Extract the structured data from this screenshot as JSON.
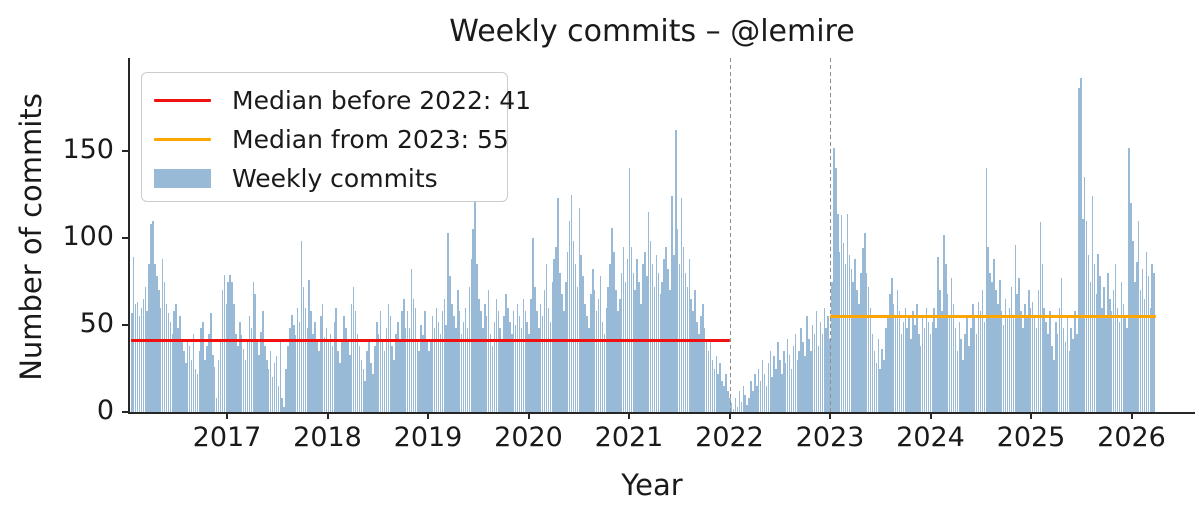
{
  "title": "Weekly commits – @lemire",
  "axes": {
    "xlabel": "Year",
    "ylabel": "Number of commits",
    "x_ticks": [
      2017,
      2018,
      2019,
      2020,
      2021,
      2022,
      2023,
      2024,
      2025,
      2026
    ],
    "y_ticks": [
      0,
      50,
      100,
      150
    ]
  },
  "legend": {
    "items": [
      {
        "swatch": "line",
        "color": "#f01010",
        "label": "Median before 2022: 41"
      },
      {
        "swatch": "line",
        "color": "#ffa500",
        "label": "Median from 2023: 55"
      },
      {
        "swatch": "patch",
        "color": "rgba(70,130,180,0.55)",
        "label": "Weekly commits"
      }
    ]
  },
  "colors": {
    "bar_fill": "rgba(70,130,180,0.55)",
    "median_before": "#f01010",
    "median_after": "#ffa500",
    "vline": "#8f8f8f",
    "spine": "#262626"
  },
  "chart_data": {
    "type": "bar",
    "title": "Weekly commits – @lemire",
    "xlabel": "Year",
    "ylabel": "Number of commits",
    "x_unit": "weeks",
    "x_start_year": 2016.045,
    "weeks_per_year": 52.1,
    "xlim": [
      2016.0,
      2026.6
    ],
    "ylim": [
      0,
      203
    ],
    "x_ticks": [
      2017,
      2018,
      2019,
      2020,
      2021,
      2022,
      2023,
      2024,
      2025,
      2026
    ],
    "y_ticks": [
      0,
      50,
      100,
      150
    ],
    "grid": false,
    "legend_position": "upper left",
    "bar_color": "steelblue",
    "bar_alpha": 0.55,
    "median_lines": [
      {
        "label": "Median before 2022: 41",
        "value": 41,
        "color": "#f01010",
        "x_from": 2016.045,
        "x_to": 2022.0
      },
      {
        "label": "Median from 2023: 55",
        "value": 55,
        "color": "#ffa500",
        "x_from": 2023.0,
        "x_to": 2026.24
      }
    ],
    "vlines": [
      {
        "x": 2022.0
      },
      {
        "x": 2023.0
      }
    ],
    "values": [
      57,
      89,
      62,
      63,
      55,
      60,
      65,
      72,
      58,
      85,
      108,
      110,
      85,
      78,
      70,
      60,
      88,
      75,
      62,
      57,
      52,
      45,
      58,
      62,
      48,
      55,
      40,
      35,
      28,
      42,
      38,
      30,
      45,
      25,
      22,
      35,
      48,
      52,
      30,
      38,
      45,
      57,
      33,
      26,
      8,
      30,
      42,
      70,
      79,
      62,
      75,
      79,
      75,
      62,
      45,
      38,
      52,
      44,
      36,
      30,
      42,
      55,
      48,
      75,
      68,
      40,
      33,
      46,
      58,
      38,
      30,
      25,
      35,
      20,
      28,
      32,
      15,
      40,
      8,
      3,
      25,
      38,
      48,
      56,
      50,
      44,
      60,
      52,
      98,
      72,
      60,
      48,
      76,
      58,
      45,
      52,
      40,
      35,
      55,
      62,
      43,
      48,
      40,
      45,
      38,
      52,
      60,
      35,
      28,
      42,
      55,
      48,
      40,
      33,
      62,
      72,
      58,
      45,
      38,
      30,
      25,
      18,
      35,
      42,
      28,
      22,
      38,
      52,
      45,
      58,
      40,
      35,
      48,
      62,
      55,
      38,
      30,
      45,
      52,
      40,
      58,
      65,
      48,
      58,
      48,
      82,
      65,
      60,
      42,
      35,
      50,
      44,
      58,
      40,
      35,
      42,
      55,
      48,
      60,
      52,
      45,
      58,
      65,
      50,
      103,
      78,
      62,
      55,
      48,
      70,
      58,
      45,
      52,
      60,
      48,
      72,
      88,
      105,
      121,
      85,
      65,
      58,
      48,
      62,
      55,
      70,
      45,
      38,
      52,
      65,
      58,
      48,
      42,
      55,
      68,
      60,
      52,
      45,
      58,
      50,
      62,
      55,
      48,
      65,
      58,
      52,
      45,
      65,
      100,
      72,
      58,
      48,
      62,
      55,
      70,
      85,
      60,
      52,
      75,
      88,
      95,
      123,
      80,
      68,
      58,
      75,
      92,
      110,
      125,
      98,
      85,
      72,
      117,
      90,
      78,
      62,
      55,
      48,
      68,
      82,
      70,
      58,
      65,
      78,
      52,
      45,
      60,
      72,
      85,
      106,
      92,
      70,
      58,
      65,
      80,
      95,
      75,
      88,
      140,
      95,
      80,
      70,
      88,
      75,
      62,
      85,
      92,
      78,
      115,
      98,
      85,
      72,
      90,
      80,
      68,
      75,
      88,
      95,
      82,
      70,
      124,
      90,
      162,
      105,
      85,
      123,
      95,
      80,
      72,
      88,
      65,
      58,
      70,
      52,
      45,
      55,
      62,
      48,
      40,
      35,
      42,
      30,
      25,
      32,
      22,
      28,
      18,
      15,
      22,
      12,
      8,
      5,
      2,
      8,
      3,
      12,
      6,
      15,
      10,
      4,
      8,
      18,
      12,
      22,
      15,
      25,
      18,
      30,
      22,
      15,
      28,
      35,
      20,
      32,
      25,
      40,
      30,
      22,
      35,
      28,
      42,
      33,
      25,
      38,
      45,
      30,
      35,
      48,
      40,
      32,
      55,
      42,
      35,
      50,
      45,
      58,
      38,
      52,
      45,
      60,
      48,
      55,
      42,
      75,
      152,
      140,
      114,
      92,
      113,
      97,
      85,
      114,
      90,
      82,
      75,
      88,
      70,
      62,
      80,
      94,
      103,
      80,
      72,
      60,
      45,
      35,
      28,
      42,
      25,
      36,
      30,
      48,
      55,
      68,
      77,
      62,
      55,
      70,
      58,
      45,
      52,
      60,
      48,
      55,
      42,
      58,
      50,
      62,
      45,
      38,
      55,
      48,
      60,
      52,
      45,
      52,
      60,
      48,
      89,
      70,
      58,
      102,
      85,
      68,
      55,
      77,
      62,
      48,
      35,
      52,
      42,
      30,
      45,
      55,
      38,
      48,
      62,
      55,
      45,
      63,
      58,
      70,
      52,
      140,
      95,
      80,
      75,
      88,
      70,
      62,
      76,
      58,
      50,
      65,
      55,
      60,
      72,
      55,
      96,
      68,
      77,
      58,
      48,
      62,
      55,
      70,
      60,
      63,
      55,
      48,
      70,
      109,
      85,
      60,
      52,
      45,
      58,
      38,
      30,
      52,
      45,
      60,
      77,
      48,
      40,
      55,
      35,
      48,
      42,
      58,
      45,
      186,
      192,
      111,
      135,
      110,
      90,
      75,
      124,
      85,
      68,
      91,
      78,
      60,
      72,
      55,
      80,
      65,
      58,
      70,
      85,
      60,
      52,
      75,
      62,
      55,
      48,
      152,
      120,
      98,
      75,
      86,
      110,
      70,
      82,
      65,
      92,
      78,
      60,
      85,
      80
    ]
  }
}
